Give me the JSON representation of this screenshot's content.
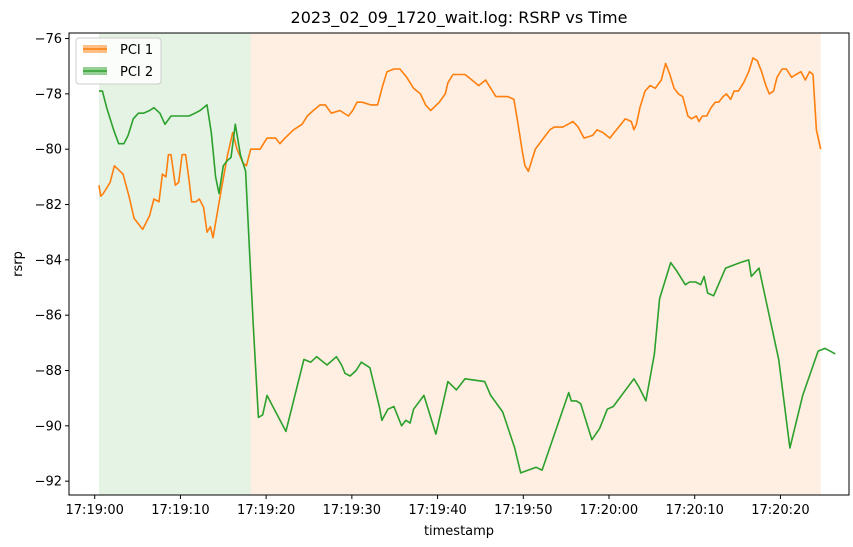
{
  "chart_data": {
    "type": "line",
    "title": "2023_02_09_1720_wait.log: RSRP vs Time",
    "xlabel": "timestamp",
    "ylabel": "rsrp",
    "x_range_seconds": [
      "17:18:57",
      "17:20:28"
    ],
    "xlim": [
      "17:18:57",
      "17:20:28"
    ],
    "ylim": [
      -92.5,
      -75.8
    ],
    "y_ticks": [
      -92,
      -90,
      -88,
      -86,
      -84,
      -82,
      -80,
      -78,
      -76
    ],
    "y_tick_labels": [
      "−92",
      "−90",
      "−88",
      "−86",
      "−84",
      "−82",
      "−80",
      "−78",
      "−76"
    ],
    "x_ticks": [
      "17:19:00",
      "17:19:10",
      "17:19:20",
      "17:19:30",
      "17:19:40",
      "17:19:50",
      "17:20:00",
      "17:20:10",
      "17:20:20"
    ],
    "grid": false,
    "legend_position": "top-left",
    "shaded_regions": [
      {
        "x_start": "17:19:00.5",
        "x_end": "17:19:18.2",
        "color": "#2ca02c",
        "opacity": 0.12
      },
      {
        "x_start": "17:19:18.2",
        "x_end": "17:20:24.7",
        "color": "#ff7f0e",
        "opacity": 0.12
      }
    ],
    "series": [
      {
        "name": "PCI 1",
        "color": "#ff7f0e",
        "points": [
          [
            "17:19:00.5",
            -81.3
          ],
          [
            "17:19:00.7",
            -81.7
          ],
          [
            "17:19:01.0",
            -81.6
          ],
          [
            "17:19:01.8",
            -81.2
          ],
          [
            "17:19:02.3",
            -80.6
          ],
          [
            "17:19:03.3",
            -80.9
          ],
          [
            "17:19:04.0",
            -81.7
          ],
          [
            "17:19:04.6",
            -82.5
          ],
          [
            "17:19:05.6",
            -82.9
          ],
          [
            "17:19:06.4",
            -82.4
          ],
          [
            "17:19:06.9",
            -81.8
          ],
          [
            "17:19:07.5",
            -81.9
          ],
          [
            "17:19:07.9",
            -80.9
          ],
          [
            "17:19:08.3",
            -81.0
          ],
          [
            "17:19:08.6",
            -80.2
          ],
          [
            "17:19:08.9",
            -80.2
          ],
          [
            "17:19:09.4",
            -81.3
          ],
          [
            "17:19:09.8",
            -81.2
          ],
          [
            "17:19:10.2",
            -80.2
          ],
          [
            "17:19:10.6",
            -80.2
          ],
          [
            "17:19:11.0",
            -81.1
          ],
          [
            "17:19:11.3",
            -81.9
          ],
          [
            "17:19:11.8",
            -81.9
          ],
          [
            "17:19:12.2",
            -81.8
          ],
          [
            "17:19:12.7",
            -82.1
          ],
          [
            "17:19:13.1",
            -83.0
          ],
          [
            "17:19:13.5",
            -82.8
          ],
          [
            "17:19:13.8",
            -83.2
          ],
          [
            "17:19:14.8",
            -81.4
          ],
          [
            "17:19:15.5",
            -80.2
          ],
          [
            "17:19:16.1",
            -79.4
          ],
          [
            "17:19:16.6",
            -80.0
          ],
          [
            "17:19:17.3",
            -80.5
          ],
          [
            "17:19:17.7",
            -80.6
          ],
          [
            "17:19:18.2",
            -80.0
          ],
          [
            "17:19:18.6",
            -80.0
          ],
          [
            "17:19:19.3",
            -80.0
          ],
          [
            "17:19:20.1",
            -79.6
          ],
          [
            "17:19:21.1",
            -79.6
          ],
          [
            "17:19:21.6",
            -79.8
          ],
          [
            "17:19:22.2",
            -79.6
          ],
          [
            "17:19:23.2",
            -79.3
          ],
          [
            "17:19:24.2",
            -79.1
          ],
          [
            "17:19:24.8",
            -78.8
          ],
          [
            "17:19:25.5",
            -78.6
          ],
          [
            "17:19:26.3",
            -78.4
          ],
          [
            "17:19:26.9",
            -78.4
          ],
          [
            "17:19:27.6",
            -78.7
          ],
          [
            "17:19:28.6",
            -78.6
          ],
          [
            "17:19:29.6",
            -78.8
          ],
          [
            "17:19:30.1",
            -78.6
          ],
          [
            "17:19:30.6",
            -78.3
          ],
          [
            "17:19:31.2",
            -78.3
          ],
          [
            "17:19:32.2",
            -78.4
          ],
          [
            "17:19:33.0",
            -78.4
          ],
          [
            "17:19:33.6",
            -77.7
          ],
          [
            "17:19:34.1",
            -77.2
          ],
          [
            "17:19:34.9",
            -77.1
          ],
          [
            "17:19:35.6",
            -77.1
          ],
          [
            "17:19:36.4",
            -77.4
          ],
          [
            "17:19:37.2",
            -77.8
          ],
          [
            "17:19:38.0",
            -78.0
          ],
          [
            "17:19:38.6",
            -78.4
          ],
          [
            "17:19:39.2",
            -78.6
          ],
          [
            "17:19:40.2",
            -78.3
          ],
          [
            "17:19:40.9",
            -78.0
          ],
          [
            "17:19:41.2",
            -77.6
          ],
          [
            "17:19:41.8",
            -77.3
          ],
          [
            "17:19:42.5",
            -77.3
          ],
          [
            "17:19:43.2",
            -77.3
          ],
          [
            "17:19:44.0",
            -77.5
          ],
          [
            "17:19:44.8",
            -77.7
          ],
          [
            "17:19:45.6",
            -77.5
          ],
          [
            "17:19:46.2",
            -77.8
          ],
          [
            "17:19:46.8",
            -78.1
          ],
          [
            "17:19:47.6",
            -78.1
          ],
          [
            "17:19:48.2",
            -78.1
          ],
          [
            "17:19:48.9",
            -78.2
          ],
          [
            "17:19:49.4",
            -79.1
          ],
          [
            "17:19:49.9",
            -80.1
          ],
          [
            "17:19:50.2",
            -80.6
          ],
          [
            "17:19:50.6",
            -80.8
          ],
          [
            "17:19:51.4",
            -80.0
          ],
          [
            "17:19:52.6",
            -79.5
          ],
          [
            "17:19:53.1",
            -79.3
          ],
          [
            "17:19:53.6",
            -79.2
          ],
          [
            "17:19:54.6",
            -79.2
          ],
          [
            "17:19:55.2",
            -79.1
          ],
          [
            "17:19:55.8",
            -79.0
          ],
          [
            "17:19:56.4",
            -79.2
          ],
          [
            "17:19:57.1",
            -79.6
          ],
          [
            "17:19:58.1",
            -79.5
          ],
          [
            "17:19:58.6",
            -79.3
          ],
          [
            "17:19:59.3",
            -79.4
          ],
          [
            "17:20:00.1",
            -79.6
          ],
          [
            "17:20:00.6",
            -79.4
          ],
          [
            "17:20:01.4",
            -79.1
          ],
          [
            "17:20:01.9",
            -78.9
          ],
          [
            "17:20:02.6",
            -79.0
          ],
          [
            "17:20:02.9",
            -79.3
          ],
          [
            "17:20:03.2",
            -79.1
          ],
          [
            "17:20:03.6",
            -78.5
          ],
          [
            "17:20:04.2",
            -77.9
          ],
          [
            "17:20:04.8",
            -77.7
          ],
          [
            "17:20:05.4",
            -77.8
          ],
          [
            "17:20:06.1",
            -77.5
          ],
          [
            "17:20:06.6",
            -76.9
          ],
          [
            "17:20:07.1",
            -77.3
          ],
          [
            "17:20:07.6",
            -77.8
          ],
          [
            "17:20:08.1",
            -78.0
          ],
          [
            "17:20:08.6",
            -78.1
          ],
          [
            "17:20:09.2",
            -78.8
          ],
          [
            "17:20:09.6",
            -78.9
          ],
          [
            "17:20:10.2",
            -78.8
          ],
          [
            "17:20:10.5",
            -79.0
          ],
          [
            "17:20:10.9",
            -78.8
          ],
          [
            "17:20:11.4",
            -78.8
          ],
          [
            "17:20:11.9",
            -78.5
          ],
          [
            "17:20:12.4",
            -78.3
          ],
          [
            "17:20:12.8",
            -78.3
          ],
          [
            "17:20:13.3",
            -78.1
          ],
          [
            "17:20:13.7",
            -78.0
          ],
          [
            "17:20:14.2",
            -78.2
          ],
          [
            "17:20:14.6",
            -77.9
          ],
          [
            "17:20:15.1",
            -77.9
          ],
          [
            "17:20:15.7",
            -77.6
          ],
          [
            "17:20:16.3",
            -77.2
          ],
          [
            "17:20:16.8",
            -76.7
          ],
          [
            "17:20:17.3",
            -76.8
          ],
          [
            "17:20:17.8",
            -77.2
          ],
          [
            "17:20:18.3",
            -77.7
          ],
          [
            "17:20:18.7",
            -78.0
          ],
          [
            "17:20:19.2",
            -77.9
          ],
          [
            "17:20:19.6",
            -77.4
          ],
          [
            "17:20:20.2",
            -77.1
          ],
          [
            "17:20:20.7",
            -77.1
          ],
          [
            "17:20:21.3",
            -77.4
          ],
          [
            "17:20:21.8",
            -77.3
          ],
          [
            "17:20:22.4",
            -77.2
          ],
          [
            "17:20:22.9",
            -77.5
          ],
          [
            "17:20:23.4",
            -77.2
          ],
          [
            "17:20:23.8",
            -77.3
          ],
          [
            "17:20:24.2",
            -79.3
          ],
          [
            "17:20:24.7",
            -80.0
          ]
        ]
      },
      {
        "name": "PCI 2",
        "color": "#2ca02c",
        "points": [
          [
            "17:19:00.5",
            -77.9
          ],
          [
            "17:19:00.9",
            -77.9
          ],
          [
            "17:19:01.4",
            -78.5
          ],
          [
            "17:19:02.2",
            -79.3
          ],
          [
            "17:19:02.8",
            -79.8
          ],
          [
            "17:19:03.4",
            -79.8
          ],
          [
            "17:19:03.9",
            -79.5
          ],
          [
            "17:19:04.5",
            -78.9
          ],
          [
            "17:19:05.1",
            -78.7
          ],
          [
            "17:19:05.7",
            -78.7
          ],
          [
            "17:19:06.4",
            -78.6
          ],
          [
            "17:19:06.9",
            -78.5
          ],
          [
            "17:19:07.6",
            -78.7
          ],
          [
            "17:19:08.2",
            -79.1
          ],
          [
            "17:19:08.9",
            -78.8
          ],
          [
            "17:19:09.6",
            -78.8
          ],
          [
            "17:19:10.2",
            -78.8
          ],
          [
            "17:19:11.0",
            -78.8
          ],
          [
            "17:19:11.7",
            -78.7
          ],
          [
            "17:19:12.3",
            -78.6
          ],
          [
            "17:19:13.1",
            -78.4
          ],
          [
            "17:19:13.6",
            -79.4
          ],
          [
            "17:19:14.1",
            -81.0
          ],
          [
            "17:19:14.5",
            -81.6
          ],
          [
            "17:19:15.0",
            -80.6
          ],
          [
            "17:19:15.5",
            -80.4
          ],
          [
            "17:19:15.9",
            -80.3
          ],
          [
            "17:19:16.4",
            -79.1
          ],
          [
            "17:19:17.0",
            -80.2
          ],
          [
            "17:19:17.6",
            -80.8
          ],
          [
            "17:19:18.0",
            -83.3
          ],
          [
            "17:19:18.5",
            -86.4
          ],
          [
            "17:19:19.1",
            -89.7
          ],
          [
            "17:19:19.6",
            -89.6
          ],
          [
            "17:19:20.1",
            -88.9
          ],
          [
            "17:19:22.3",
            -90.2
          ],
          [
            "17:19:24.4",
            -87.6
          ],
          [
            "17:19:25.2",
            -87.7
          ],
          [
            "17:19:25.9",
            -87.5
          ],
          [
            "17:19:27.1",
            -87.8
          ],
          [
            "17:19:28.2",
            -87.5
          ],
          [
            "17:19:28.8",
            -87.8
          ],
          [
            "17:19:29.2",
            -88.1
          ],
          [
            "17:19:29.8",
            -88.2
          ],
          [
            "17:19:30.5",
            -88.0
          ],
          [
            "17:19:31.1",
            -87.7
          ],
          [
            "17:19:32.1",
            -87.9
          ],
          [
            "17:19:33.2",
            -89.3
          ],
          [
            "17:19:33.5",
            -89.8
          ],
          [
            "17:19:34.2",
            -89.4
          ],
          [
            "17:19:34.9",
            -89.3
          ],
          [
            "17:19:35.8",
            -90.0
          ],
          [
            "17:19:36.3",
            -89.8
          ],
          [
            "17:19:36.8",
            -89.9
          ],
          [
            "17:19:37.2",
            -89.4
          ],
          [
            "17:19:38.4",
            -88.9
          ],
          [
            "17:19:39.8",
            -90.3
          ],
          [
            "17:19:41.2",
            -88.4
          ],
          [
            "17:19:42.2",
            -88.7
          ],
          [
            "17:19:43.2",
            -88.3
          ],
          [
            "17:19:45.5",
            -88.4
          ],
          [
            "17:19:46.2",
            -88.9
          ],
          [
            "17:19:47.6",
            -89.5
          ],
          [
            "17:19:49.0",
            -90.8
          ],
          [
            "17:19:49.7",
            -91.7
          ],
          [
            "17:19:51.5",
            -91.5
          ],
          [
            "17:19:52.2",
            -91.6
          ],
          [
            "17:19:55.3",
            -88.8
          ],
          [
            "17:19:55.6",
            -89.1
          ],
          [
            "17:19:56.2",
            -89.1
          ],
          [
            "17:19:56.7",
            -89.2
          ],
          [
            "17:19:58.0",
            -90.5
          ],
          [
            "17:19:58.9",
            -90.1
          ],
          [
            "17:19:59.8",
            -89.4
          ],
          [
            "17:20:00.5",
            -89.3
          ],
          [
            "17:20:02.9",
            -88.3
          ],
          [
            "17:20:03.5",
            -88.6
          ],
          [
            "17:20:04.3",
            -89.1
          ],
          [
            "17:20:05.3",
            -87.4
          ],
          [
            "17:20:05.9",
            -85.4
          ],
          [
            "17:20:07.2",
            -84.1
          ],
          [
            "17:20:07.9",
            -84.4
          ],
          [
            "17:20:08.9",
            -84.9
          ],
          [
            "17:20:09.4",
            -84.8
          ],
          [
            "17:20:10.1",
            -84.8
          ],
          [
            "17:20:10.7",
            -84.9
          ],
          [
            "17:20:11.1",
            -84.6
          ],
          [
            "17:20:11.5",
            -85.2
          ],
          [
            "17:20:12.2",
            -85.3
          ],
          [
            "17:20:13.6",
            -84.3
          ],
          [
            "17:20:15.3",
            -84.1
          ],
          [
            "17:20:16.3",
            -84.0
          ],
          [
            "17:20:16.6",
            -84.6
          ],
          [
            "17:20:17.5",
            -84.3
          ],
          [
            "17:20:19.8",
            -87.6
          ],
          [
            "17:20:21.1",
            -90.8
          ],
          [
            "17:20:22.6",
            -88.9
          ],
          [
            "17:20:24.4",
            -87.3
          ],
          [
            "17:20:25.2",
            -87.2
          ],
          [
            "17:20:25.8",
            -87.3
          ],
          [
            "17:20:26.4",
            -87.4
          ]
        ]
      }
    ]
  }
}
